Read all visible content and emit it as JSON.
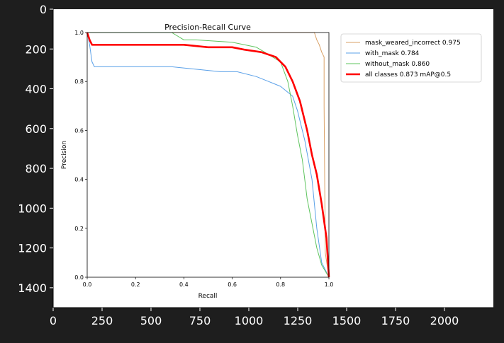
{
  "viewer": {
    "background": "#1e1e1e",
    "frame_background": "#ffffff",
    "x_ticks": [
      "0",
      "250",
      "500",
      "750",
      "1000",
      "1250",
      "1500",
      "1750",
      "2000"
    ],
    "x_tick_values": [
      0,
      250,
      500,
      750,
      1000,
      1250,
      1500,
      1750,
      2000
    ],
    "y_ticks": [
      "0",
      "200",
      "400",
      "600",
      "800",
      "1000",
      "1200",
      "1400"
    ],
    "y_tick_values": [
      0,
      200,
      400,
      600,
      800,
      1000,
      1200,
      1400
    ],
    "x_range": [
      0,
      2250
    ],
    "y_range": [
      1500,
      0
    ]
  },
  "chart_data": {
    "type": "line",
    "title": "Precision-Recall Curve",
    "xlabel": "Recall",
    "ylabel": "Precision",
    "xlim": [
      0,
      1
    ],
    "ylim": [
      0,
      1
    ],
    "x_ticks": [
      "0.0",
      "0.2",
      "0.4",
      "0.6",
      "0.8",
      "1.0"
    ],
    "x_tick_values": [
      0,
      0.2,
      0.4,
      0.6,
      0.8,
      1.0
    ],
    "y_ticks": [
      "0.0",
      "0.2",
      "0.4",
      "0.6",
      "0.8",
      "1.0"
    ],
    "y_tick_values": [
      0,
      0.2,
      0.4,
      0.6,
      0.8,
      1.0
    ],
    "grid": false,
    "legend_position": "outside-right",
    "series": [
      {
        "name": "mask_weared_incorrect 0.975",
        "color": "#d9a066",
        "x": [
          0.0,
          0.94,
          0.95,
          0.96,
          0.97,
          0.98,
          0.98,
          0.985,
          1.0
        ],
        "y": [
          1.0,
          1.0,
          0.97,
          0.95,
          0.92,
          0.9,
          0.7,
          0.1,
          0.0
        ]
      },
      {
        "name": "with_mask 0.784",
        "color": "#5aa0e8",
        "x": [
          0.0,
          0.01,
          0.02,
          0.03,
          0.35,
          0.45,
          0.55,
          0.62,
          0.7,
          0.75,
          0.8,
          0.85,
          0.87,
          0.9,
          0.93,
          0.95,
          0.97,
          1.0
        ],
        "y": [
          1.0,
          0.95,
          0.88,
          0.86,
          0.86,
          0.85,
          0.84,
          0.84,
          0.82,
          0.8,
          0.78,
          0.74,
          0.68,
          0.56,
          0.4,
          0.2,
          0.06,
          0.0
        ]
      },
      {
        "name": "without_mask 0.860",
        "color": "#5ec45e",
        "x": [
          0.0,
          0.35,
          0.4,
          0.45,
          0.6,
          0.7,
          0.75,
          0.8,
          0.83,
          0.85,
          0.87,
          0.89,
          0.91,
          0.93,
          0.95,
          0.97,
          1.0
        ],
        "y": [
          1.0,
          1.0,
          0.97,
          0.97,
          0.96,
          0.94,
          0.91,
          0.88,
          0.8,
          0.7,
          0.58,
          0.48,
          0.32,
          0.22,
          0.12,
          0.05,
          0.0
        ]
      },
      {
        "name": "all classes 0.873 mAP@0.5",
        "color": "#ff0000",
        "x": [
          0.0,
          0.01,
          0.02,
          0.04,
          0.4,
          0.5,
          0.6,
          0.65,
          0.72,
          0.78,
          0.82,
          0.85,
          0.88,
          0.91,
          0.93,
          0.95,
          0.97,
          0.99,
          1.0
        ],
        "y": [
          1.0,
          0.97,
          0.95,
          0.95,
          0.95,
          0.94,
          0.94,
          0.93,
          0.92,
          0.9,
          0.86,
          0.8,
          0.72,
          0.6,
          0.5,
          0.42,
          0.3,
          0.16,
          0.0
        ]
      }
    ]
  }
}
